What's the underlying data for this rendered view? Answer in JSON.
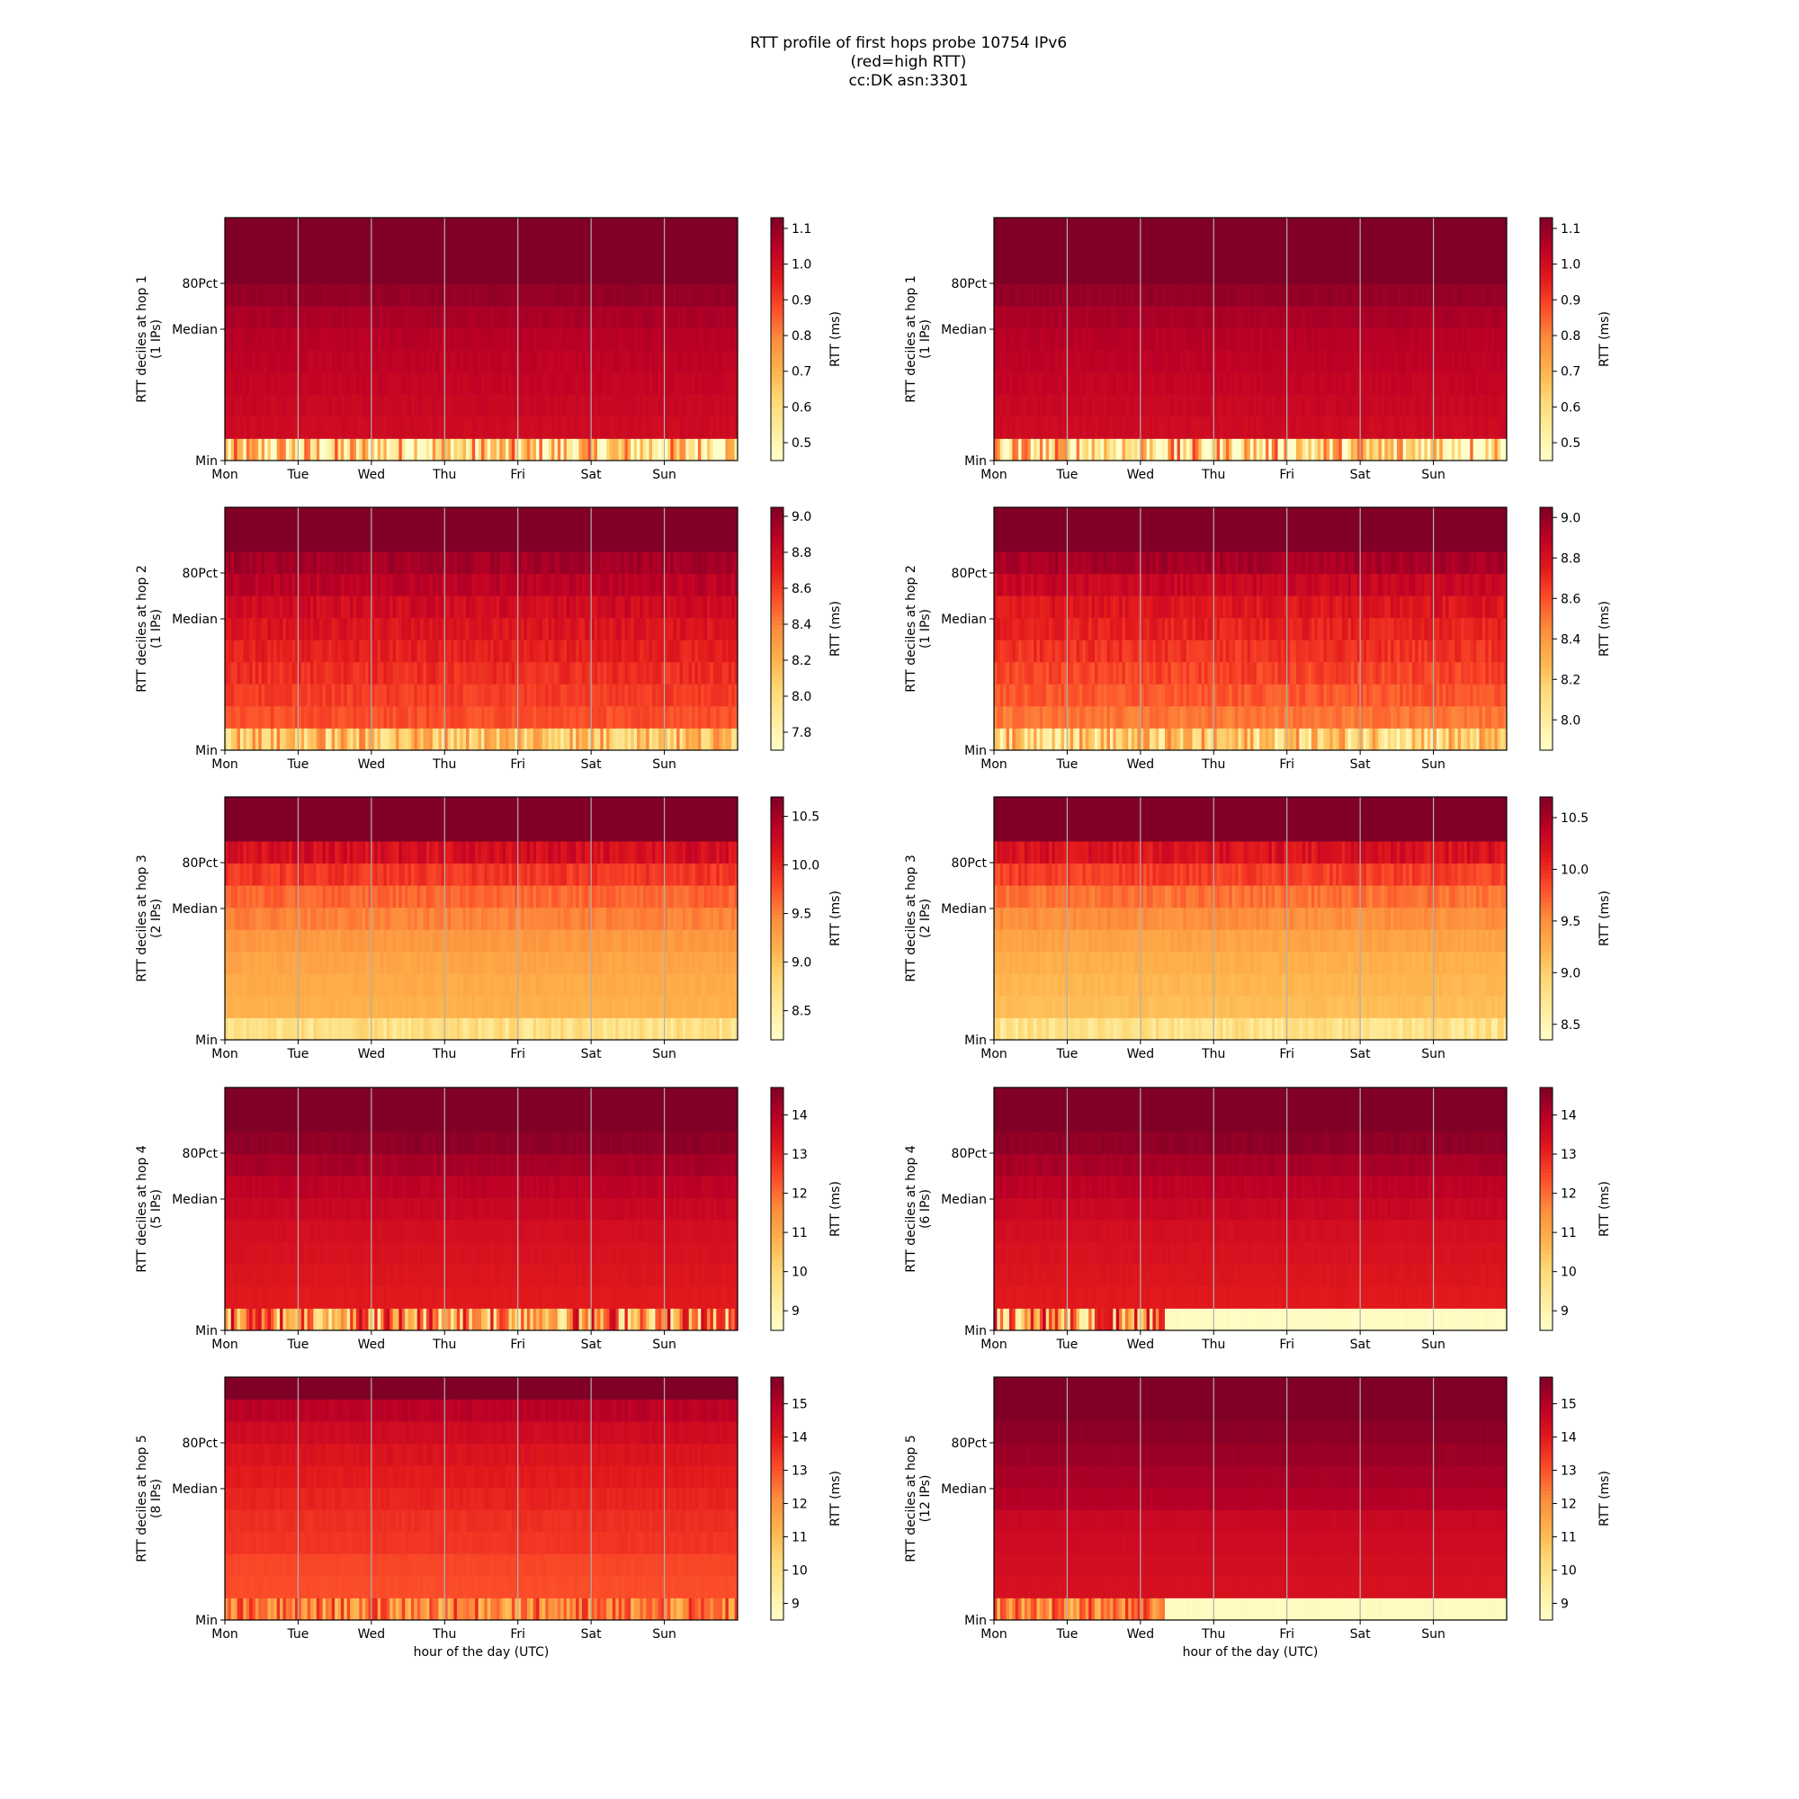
{
  "title_lines": [
    "RTT profile of first hops probe 10754 IPv6",
    "(red=high RTT)",
    "cc:DK asn:3301"
  ],
  "chart_data": [
    {
      "type": "heatmap",
      "ylabel": [
        "RTT deciles at hop 1",
        "(1 IPs)"
      ],
      "xlabel": "",
      "x_ticks": [
        "Mon",
        "Tue",
        "Wed",
        "Thu",
        "Fri",
        "Sat",
        "Sun"
      ],
      "y_ticks": [
        "Min",
        "Median",
        "80Pct"
      ],
      "colorbar": {
        "label": "RTT (ms)",
        "min": 0.45,
        "max": 1.13,
        "ticks": [
          "0.5",
          "0.6",
          "0.7",
          "0.8",
          "0.9",
          "1.0",
          "1.1"
        ]
      },
      "decile_levels": [
        0.6,
        1.01,
        1.02,
        1.03,
        1.04,
        1.05,
        1.07,
        1.1,
        1.13,
        1.13,
        1.13
      ],
      "noise": [
        0.3,
        0.01,
        0.01,
        0.01,
        0.01,
        0.01,
        0.01,
        0.01,
        0.0,
        0.0,
        0.0
      ],
      "regime_change": null,
      "colormap": "YlOrRd"
    },
    {
      "type": "heatmap",
      "ylabel": [
        "RTT deciles at hop 1",
        "(1 IPs)"
      ],
      "xlabel": "",
      "x_ticks": [
        "Mon",
        "Tue",
        "Wed",
        "Thu",
        "Fri",
        "Sat",
        "Sun"
      ],
      "y_ticks": [
        "Min",
        "Median",
        "80Pct"
      ],
      "colorbar": {
        "label": "RTT (ms)",
        "min": 0.45,
        "max": 1.13,
        "ticks": [
          "0.5",
          "0.6",
          "0.7",
          "0.8",
          "0.9",
          "1.0",
          "1.1"
        ]
      },
      "decile_levels": [
        0.6,
        1.01,
        1.02,
        1.03,
        1.04,
        1.05,
        1.07,
        1.1,
        1.13,
        1.13,
        1.13
      ],
      "noise": [
        0.3,
        0.01,
        0.01,
        0.01,
        0.01,
        0.01,
        0.01,
        0.01,
        0.0,
        0.0,
        0.0
      ],
      "regime_change": null,
      "colormap": "YlOrRd"
    },
    {
      "type": "heatmap",
      "ylabel": [
        "RTT deciles at hop 2",
        "(1 IPs)"
      ],
      "xlabel": "",
      "x_ticks": [
        "Mon",
        "Tue",
        "Wed",
        "Thu",
        "Fri",
        "Sat",
        "Sun"
      ],
      "y_ticks": [
        "Min",
        "Median",
        "80Pct"
      ],
      "colorbar": {
        "label": "RTT (ms)",
        "min": 7.7,
        "max": 9.05,
        "ticks": [
          "7.8",
          "8.0",
          "8.2",
          "8.4",
          "8.6",
          "8.8",
          "9.0"
        ]
      },
      "decile_levels": [
        8.15,
        8.55,
        8.6,
        8.65,
        8.7,
        8.75,
        8.8,
        8.88,
        8.95,
        9.05,
        9.05
      ],
      "noise": [
        0.3,
        0.05,
        0.05,
        0.06,
        0.06,
        0.06,
        0.06,
        0.05,
        0.05,
        0.0,
        0.0
      ],
      "regime_change": null,
      "colormap": "YlOrRd"
    },
    {
      "type": "heatmap",
      "ylabel": [
        "RTT deciles at hop 2",
        "(1 IPs)"
      ],
      "xlabel": "",
      "x_ticks": [
        "Mon",
        "Tue",
        "Wed",
        "Thu",
        "Fri",
        "Sat",
        "Sun"
      ],
      "y_ticks": [
        "Min",
        "Median",
        "80Pct"
      ],
      "colorbar": {
        "label": "RTT (ms)",
        "min": 7.85,
        "max": 9.05,
        "ticks": [
          "8.0",
          "8.2",
          "8.4",
          "8.6",
          "8.8",
          "9.0"
        ]
      },
      "decile_levels": [
        8.2,
        8.5,
        8.58,
        8.63,
        8.68,
        8.73,
        8.78,
        8.86,
        8.95,
        9.05,
        9.05
      ],
      "noise": [
        0.3,
        0.05,
        0.05,
        0.06,
        0.06,
        0.06,
        0.06,
        0.05,
        0.05,
        0.0,
        0.0
      ],
      "regime_change": null,
      "colormap": "YlOrRd"
    },
    {
      "type": "heatmap",
      "ylabel": [
        "RTT deciles at hop 3",
        "(2 IPs)"
      ],
      "xlabel": "",
      "x_ticks": [
        "Mon",
        "Tue",
        "Wed",
        "Thu",
        "Fri",
        "Sat",
        "Sun"
      ],
      "y_ticks": [
        "Min",
        "Median",
        "80Pct"
      ],
      "colorbar": {
        "label": "RTT (ms)",
        "min": 8.2,
        "max": 10.7,
        "ticks": [
          "8.5",
          "9.0",
          "9.5",
          "10.0",
          "10.5"
        ]
      },
      "decile_levels": [
        8.7,
        9.15,
        9.2,
        9.25,
        9.35,
        9.5,
        9.65,
        9.9,
        10.2,
        10.7,
        10.7
      ],
      "noise": [
        0.2,
        0.04,
        0.04,
        0.05,
        0.06,
        0.08,
        0.1,
        0.12,
        0.15,
        0.0,
        0.0
      ],
      "regime_change": null,
      "colormap": "YlOrRd"
    },
    {
      "type": "heatmap",
      "ylabel": [
        "RTT deciles at hop 3",
        "(2 IPs)"
      ],
      "xlabel": "",
      "x_ticks": [
        "Mon",
        "Tue",
        "Wed",
        "Thu",
        "Fri",
        "Sat",
        "Sun"
      ],
      "y_ticks": [
        "Min",
        "Median",
        "80Pct"
      ],
      "colorbar": {
        "label": "RTT (ms)",
        "min": 8.35,
        "max": 10.7,
        "ticks": [
          "8.5",
          "9.0",
          "9.5",
          "10.0",
          "10.5"
        ]
      },
      "decile_levels": [
        8.8,
        9.15,
        9.2,
        9.25,
        9.35,
        9.5,
        9.65,
        9.9,
        10.2,
        10.7,
        10.7
      ],
      "noise": [
        0.2,
        0.04,
        0.04,
        0.05,
        0.06,
        0.08,
        0.1,
        0.12,
        0.15,
        0.0,
        0.0
      ],
      "regime_change": null,
      "colormap": "YlOrRd"
    },
    {
      "type": "heatmap",
      "ylabel": [
        "RTT deciles at hop 4",
        "(5 IPs)"
      ],
      "xlabel": "",
      "x_ticks": [
        "Mon",
        "Tue",
        "Wed",
        "Thu",
        "Fri",
        "Sat",
        "Sun"
      ],
      "y_ticks": [
        "Min",
        "Median",
        "80Pct"
      ],
      "colorbar": {
        "label": "RTT (ms)",
        "min": 8.5,
        "max": 14.7,
        "ticks": [
          "9",
          "10",
          "11",
          "12",
          "13",
          "14"
        ]
      },
      "decile_levels": [
        11.5,
        13.2,
        13.3,
        13.4,
        13.5,
        13.7,
        13.9,
        14.2,
        14.5,
        14.7,
        14.7
      ],
      "noise": [
        2.5,
        0.05,
        0.05,
        0.05,
        0.05,
        0.08,
        0.1,
        0.1,
        0.1,
        0.0,
        0.0
      ],
      "regime_change": null,
      "colormap": "YlOrRd"
    },
    {
      "type": "heatmap",
      "ylabel": [
        "RTT deciles at hop 4",
        "(6 IPs)"
      ],
      "xlabel": "",
      "x_ticks": [
        "Mon",
        "Tue",
        "Wed",
        "Thu",
        "Fri",
        "Sat",
        "Sun"
      ],
      "y_ticks": [
        "Min",
        "Median",
        "80Pct"
      ],
      "colorbar": {
        "label": "RTT (ms)",
        "min": 8.5,
        "max": 14.7,
        "ticks": [
          "9",
          "10",
          "11",
          "12",
          "13",
          "14"
        ]
      },
      "decile_levels": [
        11.5,
        13.2,
        13.3,
        13.4,
        13.5,
        13.7,
        13.9,
        14.2,
        14.5,
        14.7,
        14.7
      ],
      "noise": [
        2.5,
        0.05,
        0.05,
        0.05,
        0.05,
        0.08,
        0.1,
        0.1,
        0.1,
        0.0,
        0.0
      ],
      "regime_change": {
        "start_fraction": 0.33,
        "min_value": 8.6
      },
      "colormap": "YlOrRd"
    },
    {
      "type": "heatmap",
      "ylabel": [
        "RTT deciles at hop 5",
        "(8 IPs)"
      ],
      "xlabel": "hour of the day (UTC)",
      "x_ticks": [
        "Mon",
        "Tue",
        "Wed",
        "Thu",
        "Fri",
        "Sat",
        "Sun"
      ],
      "y_ticks": [
        "Min",
        "Median",
        "80Pct"
      ],
      "colorbar": {
        "label": "RTT (ms)",
        "min": 8.5,
        "max": 15.8,
        "ticks": [
          "9",
          "10",
          "11",
          "12",
          "13",
          "14",
          "15"
        ]
      },
      "decile_levels": [
        12.3,
        13.1,
        13.2,
        13.5,
        13.6,
        13.8,
        14.0,
        14.2,
        14.5,
        14.9,
        15.8
      ],
      "noise": [
        1.5,
        0.05,
        0.05,
        0.08,
        0.1,
        0.1,
        0.1,
        0.12,
        0.12,
        0.15,
        0.0
      ],
      "regime_change": null,
      "colormap": "YlOrRd"
    },
    {
      "type": "heatmap",
      "ylabel": [
        "RTT deciles at hop 5",
        "(12 IPs)"
      ],
      "xlabel": "hour of the day (UTC)",
      "x_ticks": [
        "Mon",
        "Tue",
        "Wed",
        "Thu",
        "Fri",
        "Sat",
        "Sun"
      ],
      "y_ticks": [
        "Min",
        "Median",
        "80Pct"
      ],
      "colorbar": {
        "label": "RTT (ms)",
        "min": 8.5,
        "max": 15.8,
        "ticks": [
          "9",
          "10",
          "11",
          "12",
          "13",
          "14",
          "15"
        ]
      },
      "decile_levels": [
        12.3,
        14.3,
        14.4,
        14.5,
        14.6,
        15.0,
        15.2,
        15.4,
        15.6,
        15.8,
        15.8
      ],
      "noise": [
        1.5,
        0.03,
        0.03,
        0.03,
        0.03,
        0.05,
        0.05,
        0.05,
        0.05,
        0.0,
        0.0
      ],
      "regime_change": {
        "start_fraction": 0.33,
        "min_value": 8.7
      },
      "colormap": "YlOrRd"
    }
  ]
}
